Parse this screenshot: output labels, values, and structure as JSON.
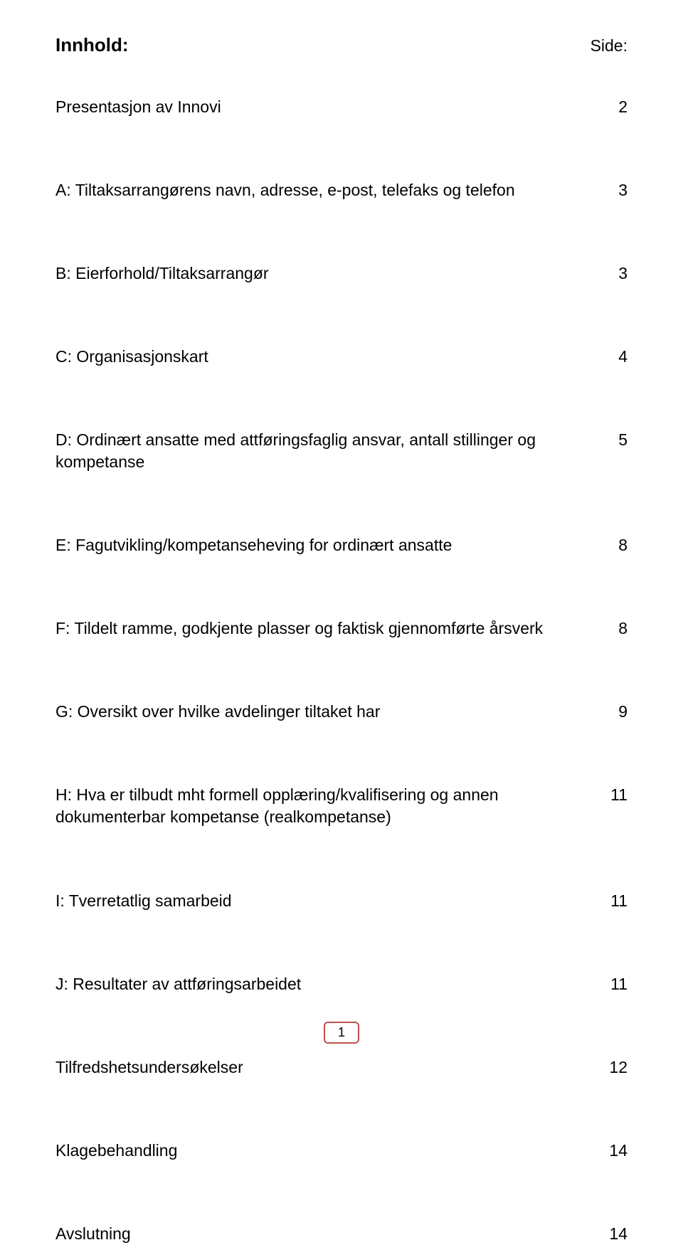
{
  "header": {
    "title": "Innhold:",
    "side_label": "Side:"
  },
  "entries": [
    {
      "label": "Presentasjon av Innovi",
      "page": "2",
      "gap": 86
    },
    {
      "label": "A: Tiltaksarrangørens navn, adresse, e-post, telefaks og telefon",
      "page": "3",
      "gap": 86
    },
    {
      "label": "B: Eierforhold/Tiltaksarrangør",
      "page": "3",
      "gap": 86
    },
    {
      "label": "C: Organisasjonskart",
      "page": "4",
      "gap": 86
    },
    {
      "label": "D: Ordinært ansatte med attføringsfaglig ansvar, antall stillinger og kompetanse",
      "page": "5",
      "gap": 86
    },
    {
      "label": "E: Fagutvikling/kompetanseheving for ordinært ansatte",
      "page": "8",
      "gap": 86
    },
    {
      "label": "F: Tildelt ramme, godkjente plasser og faktisk gjennomførte årsverk",
      "page": "8",
      "gap": 86
    },
    {
      "label": "G: Oversikt over hvilke avdelinger tiltaket har",
      "page": "9",
      "gap": 86
    },
    {
      "label": "H: Hva er tilbudt mht formell opplæring/kvalifisering og annen dokumenterbar kompetanse (realkompetanse)",
      "page": "11",
      "gap": 86
    },
    {
      "label": "I: Tverretatlig samarbeid",
      "page": "11",
      "gap": 86
    },
    {
      "label": "J: Resultater av attføringsarbeidet",
      "page": "11",
      "gap": 86
    },
    {
      "label": "Tilfredshetsundersøkelser",
      "page": "12",
      "gap": 86
    },
    {
      "label": "Klagebehandling",
      "page": "14",
      "gap": 86
    },
    {
      "label": "Avslutning",
      "page": "14",
      "gap": 0
    }
  ],
  "page_number": "1",
  "styles": {
    "title_fontsize": 26,
    "side_fontsize": 23,
    "entry_fontsize": 23,
    "text_color": "#000000",
    "background_color": "#ffffff",
    "page_box_border": "#c0504d",
    "page_box_radius": 6
  }
}
